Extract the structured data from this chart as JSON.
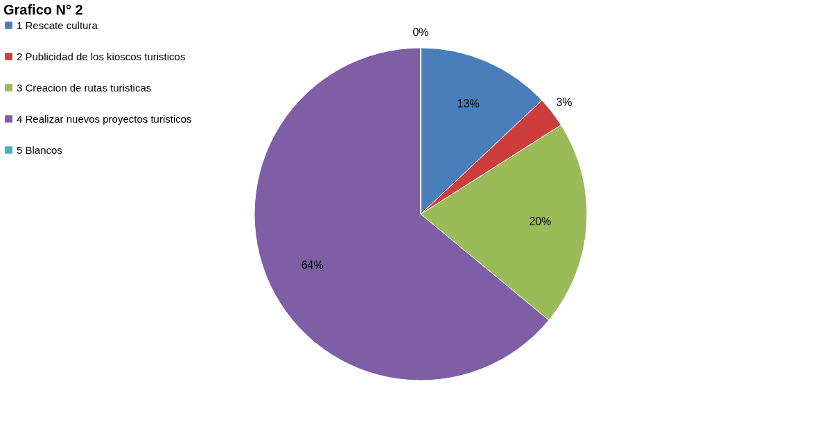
{
  "chart_data": {
    "type": "pie",
    "title": "Grafico N° 2",
    "categories": [
      "1 Rescate cultura",
      "2 Publicidad de los kioscos turisticos",
      "3 Creacion de rutas turisticas",
      "4 Realizar nuevos proyectos turisticos",
      "5 Blancos"
    ],
    "values": [
      13,
      3,
      20,
      64,
      0
    ],
    "value_labels": [
      "13%",
      "3%",
      "20%",
      "64%",
      "0%"
    ],
    "colors": [
      "#4a7ebb",
      "#cc3d3d",
      "#9bbb59",
      "#7e5fa5",
      "#4bacc6"
    ],
    "legend": "left"
  }
}
